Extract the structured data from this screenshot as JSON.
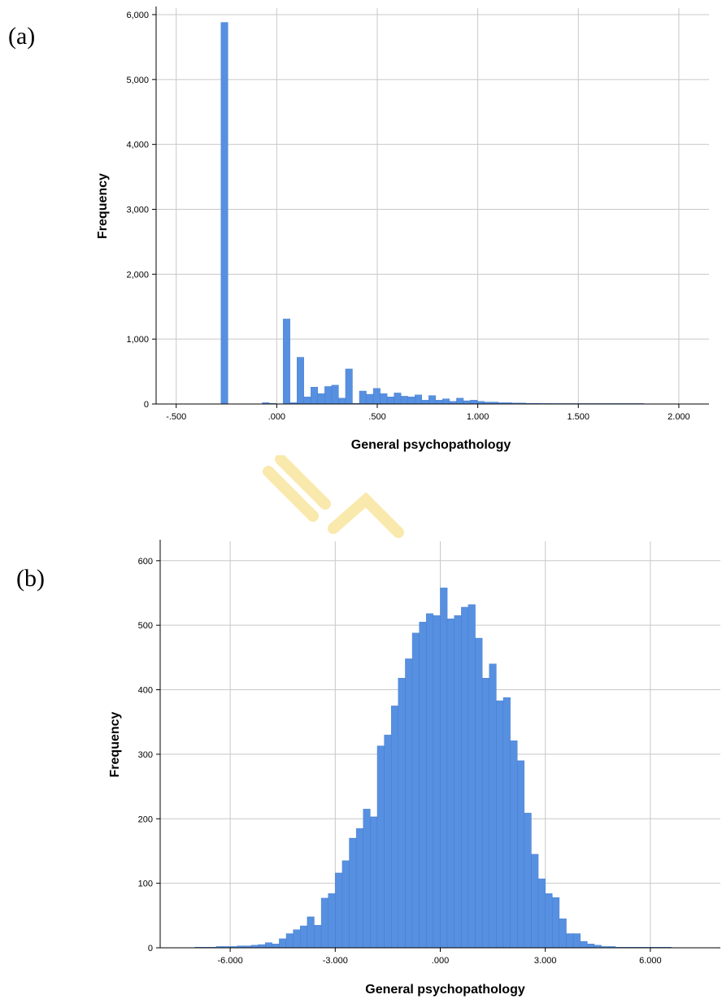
{
  "panels": {
    "a": "(a)",
    "b": "(b)"
  },
  "colors": {
    "bar": "#5790e0",
    "bar_edge": "#3f78cc",
    "grid": "#c8c8c8",
    "axis": "#000000"
  },
  "chart_data": [
    {
      "type": "bar",
      "panel": "(a)",
      "xlabel": "General psychopathology",
      "ylabel": "Frequency",
      "xlim": [
        -0.6,
        2.15
      ],
      "ylim": [
        0,
        6100
      ],
      "xticks": [
        -0.5,
        0,
        0.5,
        1.0,
        1.5,
        2.0
      ],
      "xtick_labels": [
        "-.500",
        ".000",
        ".500",
        "1.000",
        "1.500",
        "2.000"
      ],
      "yticks": [
        0,
        1000,
        2000,
        3000,
        4000,
        5000,
        6000
      ],
      "ytick_labels": [
        "0",
        "1,000",
        "2,000",
        "3,000",
        "4,000",
        "5,000",
        "6,000"
      ],
      "grid": true,
      "bin_width": 0.0345,
      "bin_centers": [
        -0.26,
        -0.0547,
        -0.0202,
        0.0488,
        0.0833,
        0.1178,
        0.1523,
        0.1868,
        0.2213,
        0.2558,
        0.2903,
        0.3248,
        0.3593,
        0.3938,
        0.4283,
        0.4628,
        0.4973,
        0.5318,
        0.5663,
        0.6008,
        0.6353,
        0.6698,
        0.7043,
        0.7388,
        0.7733,
        0.8078,
        0.8423,
        0.8768,
        0.9113,
        0.9458,
        0.9803,
        1.0148,
        1.0493,
        1.0838,
        1.1183,
        1.1528,
        1.1873,
        1.2218,
        1.2563,
        1.2908,
        1.3253,
        1.3598,
        1.3943,
        1.4288,
        1.4633,
        1.4978,
        1.5323,
        1.5668,
        1.6013,
        1.6358,
        1.6703,
        1.7048,
        1.7393,
        1.7738,
        1.8083
      ],
      "values": [
        5880,
        20,
        10,
        1310,
        20,
        720,
        110,
        260,
        160,
        270,
        290,
        90,
        540,
        10,
        200,
        150,
        240,
        160,
        110,
        170,
        120,
        110,
        140,
        60,
        130,
        60,
        80,
        40,
        90,
        50,
        60,
        40,
        30,
        30,
        20,
        20,
        15,
        15,
        10,
        10,
        8,
        8,
        6,
        5,
        5,
        4,
        4,
        3,
        3,
        2,
        2,
        2,
        1,
        1,
        1
      ]
    },
    {
      "type": "bar",
      "panel": "(b)",
      "xlabel": "General psychopathology",
      "ylabel": "Frequency",
      "xlim": [
        -8.0,
        8.0
      ],
      "ylim": [
        0,
        630
      ],
      "xticks": [
        -6,
        -3,
        0,
        3,
        6
      ],
      "xtick_labels": [
        "-6.000",
        "-3.000",
        ".000",
        "3.000",
        "6.000"
      ],
      "yticks": [
        0,
        100,
        200,
        300,
        400,
        500,
        600
      ],
      "ytick_labels": [
        "0",
        "100",
        "200",
        "300",
        "400",
        "500",
        "600"
      ],
      "grid": true,
      "bin_width": 0.2,
      "bin_centers": [
        -6.9,
        -6.7,
        -6.5,
        -6.3,
        -6.1,
        -5.9,
        -5.7,
        -5.5,
        -5.3,
        -5.1,
        -4.9,
        -4.7,
        -4.5,
        -4.3,
        -4.1,
        -3.9,
        -3.7,
        -3.5,
        -3.3,
        -3.1,
        -2.9,
        -2.7,
        -2.5,
        -2.3,
        -2.1,
        -1.9,
        -1.7,
        -1.5,
        -1.3,
        -1.1,
        -0.9,
        -0.7,
        -0.5,
        -0.3,
        -0.1,
        0.1,
        0.3,
        0.5,
        0.7,
        0.9,
        1.1,
        1.3,
        1.5,
        1.7,
        1.9,
        2.1,
        2.3,
        2.5,
        2.7,
        2.9,
        3.1,
        3.3,
        3.5,
        3.7,
        3.9,
        4.1,
        4.3,
        4.5,
        4.7,
        4.9,
        5.1,
        5.3,
        5.5,
        5.7,
        5.9,
        6.1,
        6.3,
        6.5
      ],
      "values": [
        1,
        1,
        1,
        2,
        2,
        2,
        3,
        3,
        4,
        5,
        8,
        6,
        14,
        22,
        28,
        34,
        48,
        35,
        77,
        84,
        116,
        135,
        170,
        185,
        215,
        203,
        313,
        330,
        375,
        418,
        448,
        488,
        505,
        518,
        515,
        558,
        510,
        515,
        528,
        532,
        480,
        418,
        440,
        383,
        388,
        321,
        290,
        209,
        145,
        107,
        84,
        78,
        45,
        22,
        22,
        10,
        6,
        4,
        2,
        2,
        1,
        1,
        1,
        1,
        1,
        1,
        1,
        1
      ]
    }
  ]
}
